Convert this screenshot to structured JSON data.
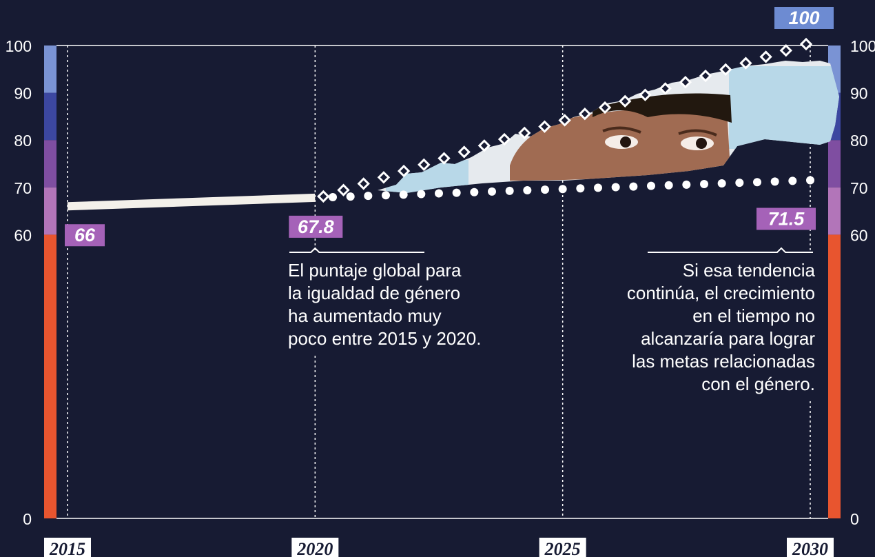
{
  "chart_data": {
    "type": "line",
    "title": "",
    "xlabel": "",
    "ylabel": "",
    "x_ticks": [
      "2015",
      "2020",
      "2025",
      "2030"
    ],
    "y_ticks": [
      "0",
      "60",
      "70",
      "80",
      "90",
      "100"
    ],
    "ylim": [
      0,
      100
    ],
    "grid": "vertical dotted lines at each year",
    "series": [
      {
        "style": "solid",
        "x": [
          2015,
          2020
        ],
        "values": [
          66,
          67.8
        ],
        "color": "#f3f0ea"
      },
      {
        "style": "dotted-circles",
        "x": [
          2020,
          2030
        ],
        "values": [
          67.8,
          71.5
        ],
        "color": "#ffffff"
      },
      {
        "style": "diamonds",
        "x": [
          2020,
          2030
        ],
        "values": [
          67.8,
          100
        ],
        "color": "#ffffff"
      }
    ],
    "data_labels": [
      {
        "text": "66",
        "x": 2015,
        "y": 66
      },
      {
        "text": "67.8",
        "x": 2020,
        "y": 67.8
      },
      {
        "text": "71.5",
        "x": 2030,
        "y": 71.5
      },
      {
        "text": "100",
        "x": 2030,
        "y": 100
      }
    ],
    "color_bands": [
      {
        "from": 0,
        "to": 60,
        "color": "#e8552f"
      },
      {
        "from": 60,
        "to": 70,
        "color": "#b275b9"
      },
      {
        "from": 70,
        "to": 80,
        "color": "#7f4ea1"
      },
      {
        "from": 80,
        "to": 90,
        "color": "#3c47a0"
      },
      {
        "from": 90,
        "to": 100,
        "color": "#7a93d4"
      }
    ],
    "annotations": [
      {
        "id": "left",
        "lines": [
          "El puntaje global para",
          "la igualdad de género",
          "ha aumentado muy",
          "poco entre 2015 y 2020."
        ]
      },
      {
        "id": "right",
        "lines": [
          "Si esa tendencia",
          "continúa, el crecimiento",
          "en el tiempo no",
          "alcanzaría para lograr",
          "las metas relacionadas",
          "con el género."
        ]
      }
    ],
    "colors": {
      "background": "#171b33",
      "label_purple": "#a562b8",
      "label_blue": "#6d8bd2",
      "axis_text": "#ffffff",
      "photo_sky": "#b8d8e8",
      "photo_skin": "#a06b52",
      "paper": "#e6eaee"
    },
    "decor": {
      "photo": "torn-paper photo of a child's eyes"
    }
  }
}
